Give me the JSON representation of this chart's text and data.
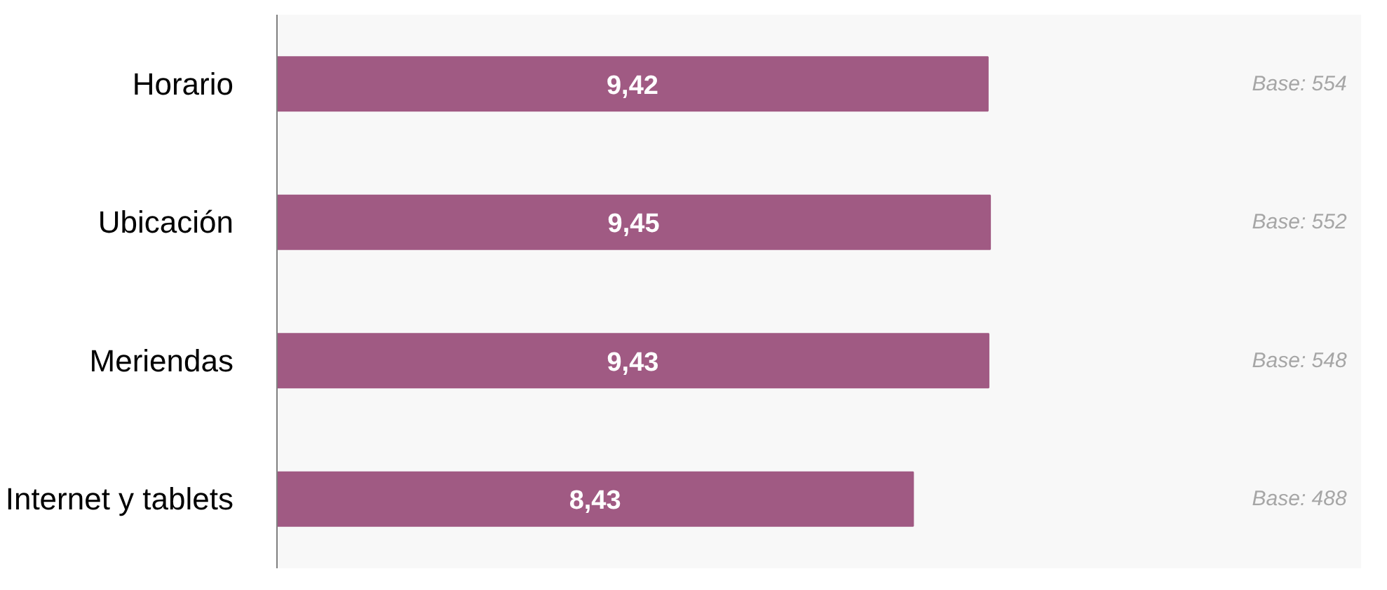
{
  "chart_data": {
    "type": "bar",
    "orientation": "horizontal",
    "categories": [
      "Horario",
      "Ubicación",
      "Meriendas",
      "Internet y tablets"
    ],
    "values": [
      9.42,
      9.45,
      9.43,
      8.43
    ],
    "value_labels": [
      "9,42",
      "9,45",
      "9,43",
      "8,43"
    ],
    "color": "#a05a83",
    "annotations": [
      "Base: 554",
      "Base: 552",
      "Base: 548",
      "Base: 488"
    ],
    "grid": false
  }
}
